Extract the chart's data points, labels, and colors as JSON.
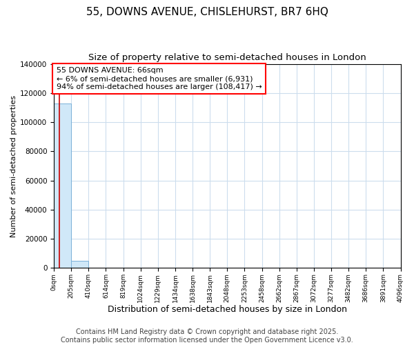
{
  "title": "55, DOWNS AVENUE, CHISLEHURST, BR7 6HQ",
  "subtitle": "Size of property relative to semi-detached houses in London",
  "xlabel": "Distribution of semi-detached houses by size in London",
  "ylabel": "Number of semi-detached properties",
  "bar_color": "#d0e8f8",
  "bar_edgecolor": "#7ab0d8",
  "annotation_text": "55 DOWNS AVENUE: 66sqm\n← 6% of semi-detached houses are smaller (6,931)\n94% of semi-detached houses are larger (108,417) →",
  "property_size": 66,
  "property_line_color": "#cc0000",
  "bin_edges": [
    0,
    205,
    410,
    614,
    819,
    1024,
    1229,
    1434,
    1638,
    1843,
    2048,
    2253,
    2458,
    2662,
    2867,
    3072,
    3277,
    3482,
    3686,
    3891,
    4096
  ],
  "bin_labels": [
    "0sqm",
    "205sqm",
    "410sqm",
    "614sqm",
    "819sqm",
    "1024sqm",
    "1229sqm",
    "1434sqm",
    "1638sqm",
    "1843sqm",
    "2048sqm",
    "2253sqm",
    "2458sqm",
    "2662sqm",
    "2867sqm",
    "3072sqm",
    "3277sqm",
    "3482sqm",
    "3686sqm",
    "3891sqm",
    "4096sqm"
  ],
  "bar_heights": [
    113000,
    5000,
    200,
    100,
    50,
    30,
    20,
    10,
    8,
    5,
    3,
    2,
    2,
    1,
    1,
    1,
    0,
    0,
    0,
    0
  ],
  "ylim": [
    0,
    140000
  ],
  "yticks": [
    0,
    20000,
    40000,
    60000,
    80000,
    100000,
    120000,
    140000
  ],
  "footnote": "Contains HM Land Registry data © Crown copyright and database right 2025.\nContains public sector information licensed under the Open Government Licence v3.0.",
  "grid_color": "#ccdded",
  "background_color": "#ffffff",
  "title_fontsize": 11,
  "subtitle_fontsize": 9.5,
  "annotation_fontsize": 8,
  "footnote_fontsize": 7,
  "ylabel_fontsize": 8,
  "xlabel_fontsize": 9
}
